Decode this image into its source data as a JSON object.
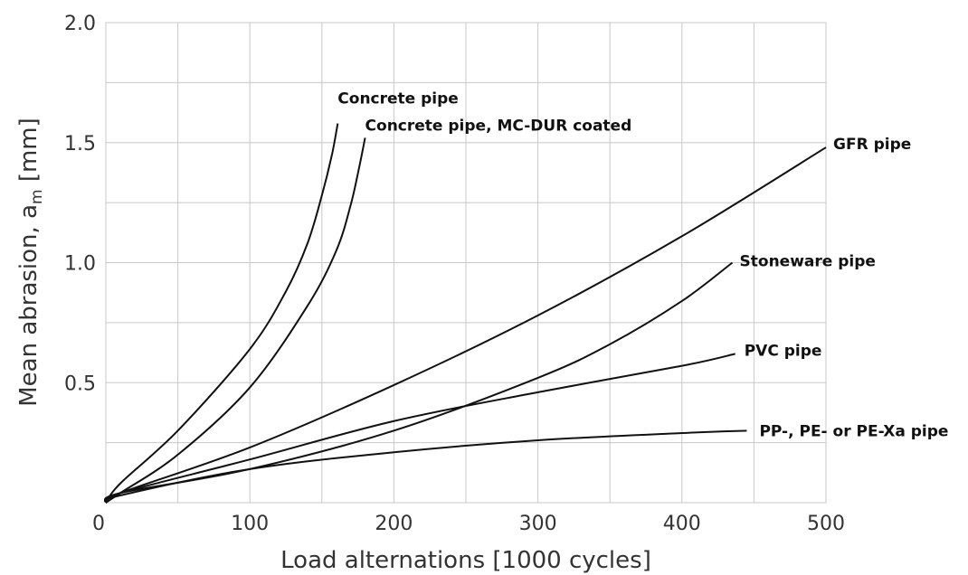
{
  "chart_data": {
    "type": "line",
    "title": "",
    "xlabel": "Load alternations [1000 cycles]",
    "ylabel_main": "Mean abrasion, a",
    "ylabel_sub": "m",
    "ylabel_unit": " [mm]",
    "xlim": [
      0,
      500
    ],
    "ylim": [
      0,
      2.0
    ],
    "x_ticks": [
      0,
      100,
      200,
      300,
      400,
      500
    ],
    "x_tick_labels": [
      "0",
      "100",
      "200",
      "300",
      "400",
      "500"
    ],
    "y_ticks": [
      0.5,
      1.0,
      1.5,
      2.0
    ],
    "y_tick_labels": [
      "0.5",
      "1.0",
      "1.5",
      "2.0"
    ],
    "grid": true,
    "series": [
      {
        "name": "Concrete pipe",
        "x": [
          10,
          50,
          100,
          125,
          140,
          150,
          157,
          161
        ],
        "y": [
          0.08,
          0.3,
          0.64,
          0.88,
          1.08,
          1.28,
          1.45,
          1.58
        ]
      },
      {
        "name": "Concrete pipe, MC-DUR coated",
        "x": [
          10,
          50,
          100,
          140,
          160,
          170,
          176,
          180
        ],
        "y": [
          0.04,
          0.2,
          0.48,
          0.82,
          1.05,
          1.24,
          1.4,
          1.52
        ]
      },
      {
        "name": "GFR pipe",
        "x": [
          10,
          100,
          200,
          300,
          400,
          500
        ],
        "y": [
          0.04,
          0.23,
          0.49,
          0.78,
          1.11,
          1.48
        ]
      },
      {
        "name": "Stoneware pipe",
        "x": [
          10,
          100,
          200,
          300,
          350,
          400,
          435
        ],
        "y": [
          0.04,
          0.14,
          0.3,
          0.52,
          0.66,
          0.84,
          1.0
        ]
      },
      {
        "name": "PVC pipe",
        "x": [
          10,
          100,
          200,
          300,
          400,
          437
        ],
        "y": [
          0.04,
          0.18,
          0.34,
          0.46,
          0.57,
          0.62
        ]
      },
      {
        "name": "PP-, PE- or PE-Xa pipe",
        "x": [
          10,
          100,
          200,
          300,
          400,
          445
        ],
        "y": [
          0.03,
          0.14,
          0.21,
          0.26,
          0.29,
          0.3
        ]
      }
    ]
  }
}
